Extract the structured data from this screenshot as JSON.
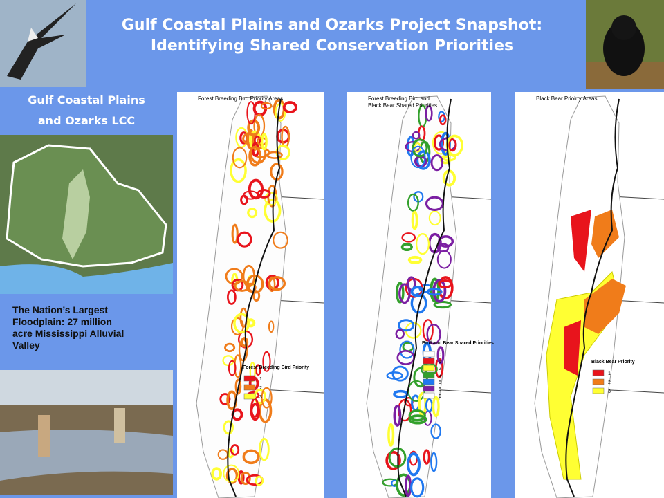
{
  "title": [
    "Gulf Coastal Plains and Ozarks Project Snapshot:",
    "Identifying Shared Conservation Priorities"
  ],
  "sidebar": {
    "heading": [
      "Gulf Coastal Plains",
      "and Ozarks LCC"
    ],
    "caption": [
      "The Nation’s Largest",
      "Floodplain: 27 million",
      "acre Mississippi Alluvial",
      "Valley"
    ]
  },
  "maps": [
    {
      "title": [
        "Forest Breeding Bird Priority Areas"
      ],
      "legend": {
        "title": "Forest Breeding Bird Priority",
        "items": [
          {
            "label": "1",
            "color": "#e8141c"
          },
          {
            "label": "2",
            "color": "#f07c1a"
          },
          {
            "label": "3",
            "color": "#ffff33"
          }
        ]
      }
    },
    {
      "title": [
        "Forest Breeding Bird and",
        "Black Bear Shared Priorities"
      ],
      "legend": {
        "title": "Bird and Bear Shared Priorities",
        "items": [
          {
            "label": "0",
            "color": "#ffffff"
          },
          {
            "label": "1",
            "color": "#e8141c"
          },
          {
            "label": "2",
            "color": "#ffff33"
          },
          {
            "label": "3",
            "color": "#33a02c"
          },
          {
            "label": "5",
            "color": "#1f78f0"
          },
          {
            "label": "6",
            "color": "#7b1fa2"
          },
          {
            "label": "9",
            "color": "#ffffff"
          }
        ]
      }
    },
    {
      "title": [
        "Black Bear Prioirty Areas"
      ],
      "legend": {
        "title": "Black Bear Priority",
        "items": [
          {
            "label": "1",
            "color": "#e8141c"
          },
          {
            "label": "2",
            "color": "#f07c1a"
          },
          {
            "label": "3",
            "color": "#ffff33"
          }
        ]
      }
    }
  ]
}
